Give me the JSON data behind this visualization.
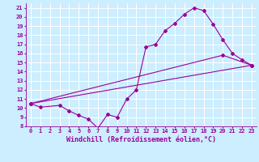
{
  "xlabel": "Windchill (Refroidissement éolien,°C)",
  "bg_color": "#cceeff",
  "line_color": "#990099",
  "grid_color": "#ffffff",
  "xlim": [
    -0.5,
    23.5
  ],
  "ylim": [
    8,
    21.5
  ],
  "xticks": [
    0,
    1,
    2,
    3,
    4,
    5,
    6,
    7,
    8,
    9,
    10,
    11,
    12,
    13,
    14,
    15,
    16,
    17,
    18,
    19,
    20,
    21,
    22,
    23
  ],
  "yticks": [
    8,
    9,
    10,
    11,
    12,
    13,
    14,
    15,
    16,
    17,
    18,
    19,
    20,
    21
  ],
  "curve1_x": [
    0,
    1,
    3,
    4,
    5,
    6,
    7,
    8,
    9,
    10,
    11,
    12,
    13,
    14,
    15,
    16,
    17,
    18,
    19,
    20,
    21,
    22,
    23
  ],
  "curve1_y": [
    10.5,
    10.1,
    10.3,
    9.7,
    9.2,
    8.8,
    7.8,
    9.3,
    9.0,
    11.0,
    12.0,
    16.7,
    17.0,
    18.5,
    19.3,
    20.3,
    21.0,
    20.7,
    19.2,
    17.5,
    16.0,
    15.3,
    14.7
  ],
  "curve2_x": [
    0,
    23
  ],
  "curve2_y": [
    10.5,
    14.7
  ],
  "curve3_x": [
    0,
    20,
    23
  ],
  "curve3_y": [
    10.5,
    15.8,
    14.7
  ],
  "marker_style": "D",
  "marker_size": 2,
  "font_size_label": 6,
  "font_size_tick": 5,
  "label_color": "#330033"
}
